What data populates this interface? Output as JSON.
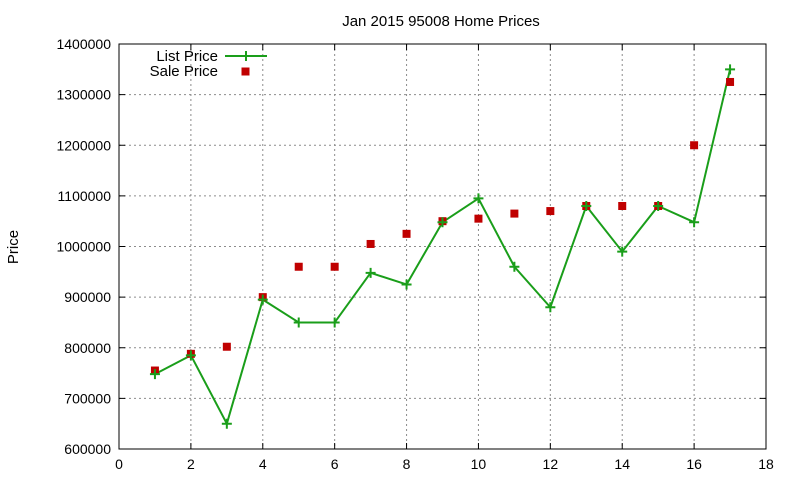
{
  "chart_data": {
    "type": "line",
    "title": "Jan 2015 95008 Home Prices",
    "xlabel": "",
    "ylabel": "Price",
    "xlim": [
      0,
      18
    ],
    "ylim": [
      600000,
      1400000
    ],
    "xticks": [
      "0",
      "2",
      "4",
      "6",
      "8",
      "10",
      "12",
      "14",
      "16",
      "18"
    ],
    "yticks": [
      "600000",
      "700000",
      "800000",
      "900000",
      "1000000",
      "1100000",
      "1200000",
      "1300000",
      "1400000"
    ],
    "grid": true,
    "legend_position": "top-left",
    "series": [
      {
        "name": "List Price",
        "style": "line-plus",
        "color": "#1a9e1a",
        "x": [
          1,
          2,
          3,
          4,
          5,
          6,
          7,
          8,
          9,
          10,
          11,
          12,
          13,
          14,
          15,
          16,
          17
        ],
        "y": [
          748000,
          785000,
          650000,
          895000,
          850000,
          850000,
          948000,
          925000,
          1048000,
          1095000,
          960000,
          880000,
          1080000,
          990000,
          1080000,
          1048000,
          1350000
        ]
      },
      {
        "name": "Sale Price",
        "style": "square-points",
        "color": "#c00000",
        "x": [
          1,
          2,
          3,
          4,
          5,
          6,
          7,
          8,
          9,
          10,
          11,
          12,
          13,
          14,
          15,
          16,
          17
        ],
        "y": [
          755000,
          788000,
          802000,
          900000,
          960000,
          960000,
          1005000,
          1025000,
          1050000,
          1055000,
          1065000,
          1070000,
          1080000,
          1080000,
          1080000,
          1200000,
          1325000
        ]
      }
    ]
  }
}
